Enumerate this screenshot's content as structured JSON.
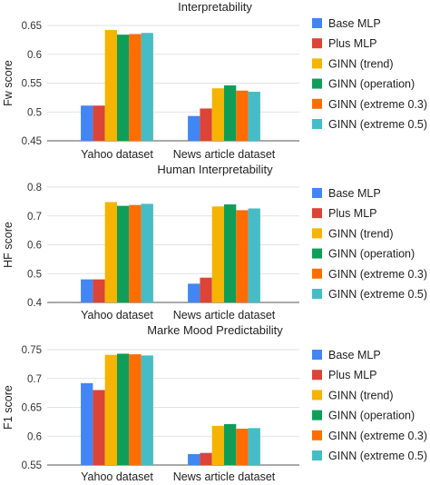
{
  "series_names": [
    "Base MLP",
    "Plus MLP",
    "GINN (trend)",
    "GINN (operation)",
    "GINN (extreme 0.3)",
    "GINN (extreme 0.5)"
  ],
  "series_colors": [
    "#4285f4",
    "#db4437",
    "#f4b400",
    "#0f9d58",
    "#ff6d01",
    "#46bdc6"
  ],
  "chart_data": [
    {
      "type": "bar",
      "title": "Interpretability",
      "ylabel": "Fw score",
      "xlabel": "",
      "categories": [
        "Yahoo dataset",
        "News article dataset"
      ],
      "ylim": [
        0.45,
        0.65
      ],
      "yticks": [
        "0.45",
        "0.5",
        "0.55",
        "0.6",
        "0.65"
      ],
      "grid": true,
      "legend": "right",
      "series": [
        {
          "name": "Base MLP",
          "values": [
            0.511,
            0.493
          ]
        },
        {
          "name": "Plus MLP",
          "values": [
            0.511,
            0.506
          ]
        },
        {
          "name": "GINN (trend)",
          "values": [
            0.642,
            0.541
          ]
        },
        {
          "name": "GINN (operation)",
          "values": [
            0.634,
            0.546
          ]
        },
        {
          "name": "GINN (extreme 0.3)",
          "values": [
            0.635,
            0.537
          ]
        },
        {
          "name": "GINN (extreme 0.5)",
          "values": [
            0.637,
            0.535
          ]
        }
      ]
    },
    {
      "type": "bar",
      "title": "Human Interpretability",
      "ylabel": "HF score",
      "xlabel": "",
      "categories": [
        "Yahoo dataset",
        "News article dataset"
      ],
      "ylim": [
        0.4,
        0.8
      ],
      "yticks": [
        "0.4",
        "0.5",
        "0.6",
        "0.7",
        "0.8"
      ],
      "grid": true,
      "legend": "right",
      "series": [
        {
          "name": "Base MLP",
          "values": [
            0.48,
            0.465
          ]
        },
        {
          "name": "Plus MLP",
          "values": [
            0.48,
            0.486
          ]
        },
        {
          "name": "GINN (trend)",
          "values": [
            0.748,
            0.733
          ]
        },
        {
          "name": "GINN (operation)",
          "values": [
            0.735,
            0.74
          ]
        },
        {
          "name": "GINN (extreme 0.3)",
          "values": [
            0.738,
            0.72
          ]
        },
        {
          "name": "GINN (extreme 0.5)",
          "values": [
            0.742,
            0.726
          ]
        }
      ]
    },
    {
      "type": "bar",
      "title": "Marke Mood Predictability",
      "ylabel": "F1 score",
      "xlabel": "",
      "categories": [
        "Yahoo dataset",
        "News article dataset"
      ],
      "ylim": [
        0.55,
        0.75
      ],
      "yticks": [
        "0.55",
        "0.6",
        "0.65",
        "0.7",
        "0.75"
      ],
      "grid": true,
      "legend": "right",
      "series": [
        {
          "name": "Base MLP",
          "values": [
            0.692,
            0.569
          ]
        },
        {
          "name": "Plus MLP",
          "values": [
            0.68,
            0.571
          ]
        },
        {
          "name": "GINN (trend)",
          "values": [
            0.741,
            0.618
          ]
        },
        {
          "name": "GINN (operation)",
          "values": [
            0.743,
            0.621
          ]
        },
        {
          "name": "GINN (extreme 0.3)",
          "values": [
            0.742,
            0.613
          ]
        },
        {
          "name": "GINN (extreme 0.5)",
          "values": [
            0.74,
            0.614
          ]
        }
      ]
    }
  ]
}
